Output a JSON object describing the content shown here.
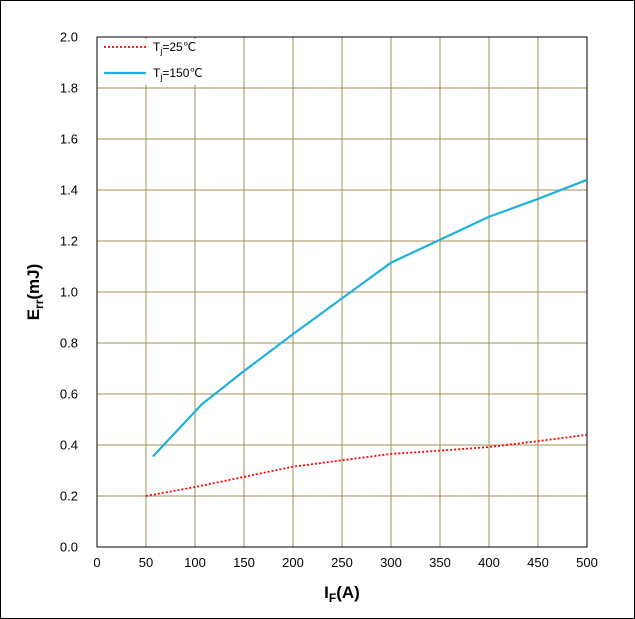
{
  "chart_data": {
    "type": "line",
    "xlabel": {
      "main": "I",
      "sub": "F",
      "suffix": "(A)"
    },
    "ylabel": {
      "main": "E",
      "sub": "rr",
      "suffix": "(mJ)"
    },
    "xlim": [
      0,
      500
    ],
    "ylim": [
      0,
      2.0
    ],
    "xticks": [
      0,
      50,
      100,
      150,
      200,
      250,
      300,
      350,
      400,
      450,
      500
    ],
    "yticks": [
      0.0,
      0.2,
      0.4,
      0.6,
      0.8,
      1.0,
      1.2,
      1.4,
      1.6,
      1.8,
      2.0
    ],
    "xtick_labels": [
      "0",
      "50",
      "100",
      "150",
      "200",
      "250",
      "300",
      "350",
      "400",
      "450",
      "500"
    ],
    "ytick_labels": [
      "0.0",
      "0.2",
      "0.4",
      "0.6",
      "0.8",
      "1.0",
      "1.2",
      "1.4",
      "1.6",
      "1.8",
      "2.0"
    ],
    "grid": true,
    "legend_position": "top-left",
    "series": [
      {
        "name": "Tj=25℃",
        "label": {
          "main": "T",
          "sub": "j",
          "suffix": "=25℃"
        },
        "color": "#ff0000",
        "style": "dotted",
        "x": [
          50,
          100,
          150,
          200,
          250,
          300,
          350,
          400,
          450,
          500
        ],
        "y": [
          0.2,
          0.235,
          0.275,
          0.315,
          0.34,
          0.365,
          0.378,
          0.392,
          0.415,
          0.44
        ]
      },
      {
        "name": "Tj=150℃",
        "label": {
          "main": "T",
          "sub": "j",
          "suffix": "=150℃"
        },
        "color": "#1fb0e0",
        "style": "solid",
        "x": [
          57,
          107,
          150,
          200,
          250,
          300,
          350,
          400,
          450,
          500
        ],
        "y": [
          0.355,
          0.56,
          0.69,
          0.835,
          0.975,
          1.115,
          1.205,
          1.295,
          1.365,
          1.44
        ]
      }
    ]
  }
}
